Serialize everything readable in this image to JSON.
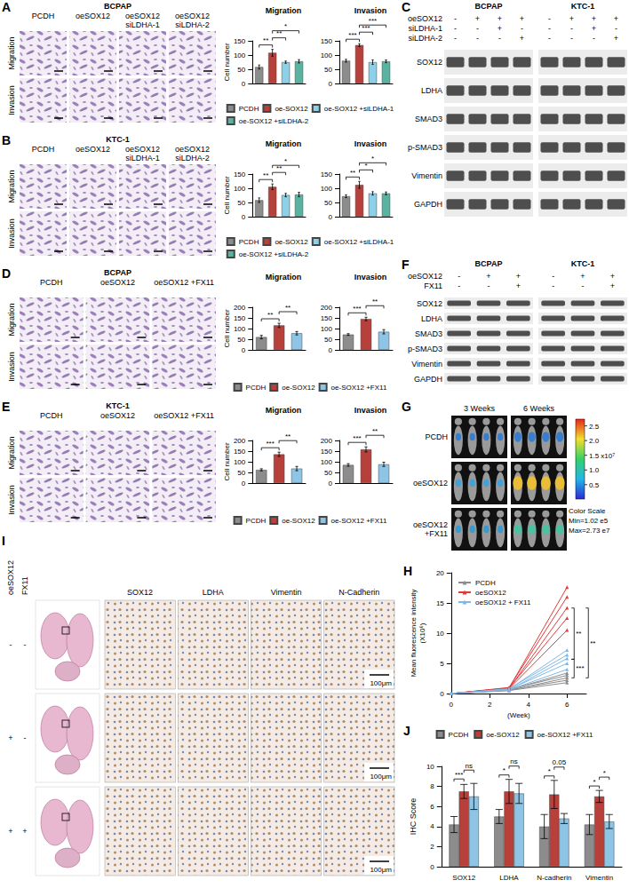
{
  "figure": {
    "panels": [
      {
        "letter": "A",
        "kind": "micrograph",
        "cell_line": "BCPAP",
        "columns": [
          "PCDH",
          "oeSOX12",
          "oeSOX12 siLDHA-1",
          "oeSOX12 siLDHA-2"
        ],
        "rows": [
          "Migration",
          "Invasion"
        ]
      },
      {
        "letter": "B",
        "kind": "micrograph",
        "cell_line": "KTC-1",
        "columns": [
          "PCDH",
          "oeSOX12",
          "oeSOX12 siLDHA-1",
          "oeSOX12 siLDHA-2"
        ],
        "rows": [
          "Migration",
          "Invasion"
        ]
      },
      {
        "letter": "C",
        "kind": "blot",
        "cell_lines": [
          "BCPAP",
          "KTC-1"
        ],
        "conditions": [
          {
            "label": "oeSOX12",
            "signs": [
              "-",
              "+",
              "+",
              "+"
            ]
          },
          {
            "label": "siLDHA-1",
            "signs": [
              "-",
              "-",
              "+",
              "-"
            ]
          },
          {
            "label": "siLDHA-2",
            "signs": [
              "-",
              "-",
              "-",
              "+"
            ]
          }
        ],
        "proteins": [
          "SOX12",
          "LDHA",
          "SMAD3",
          "p-SMAD3",
          "Vimentin",
          "GAPDH"
        ]
      },
      {
        "letter": "D",
        "kind": "micrograph",
        "cell_line": "BCPAP",
        "columns": [
          "PCDH",
          "oeSOX12",
          "oeSOX12 +FX11"
        ],
        "rows": [
          "Migration",
          "Invasion"
        ]
      },
      {
        "letter": "E",
        "kind": "micrograph",
        "cell_line": "KTC-1",
        "columns": [
          "PCDH",
          "oeSOX12",
          "oeSOX12 +FX11"
        ],
        "rows": [
          "Migration",
          "Invasion"
        ]
      },
      {
        "letter": "F",
        "kind": "blot",
        "cell_lines": [
          "BCPAP",
          "KTC-1"
        ],
        "conditions": [
          {
            "label": "oeSOX12",
            "signs": [
              "-",
              "+",
              "+"
            ]
          },
          {
            "label": "FX11",
            "signs": [
              "-",
              "-",
              "+"
            ]
          }
        ],
        "proteins": [
          "SOX12",
          "LDHA",
          "SMAD3",
          "p-SMAD3",
          "Vimentin",
          "GAPDH"
        ]
      },
      {
        "letter": "G",
        "kind": "imaging",
        "timepoints": [
          "3 Weeks",
          "6 Weeks"
        ],
        "groups": [
          "PCDH",
          "oeSOX12",
          "oeSOX12 +FX11"
        ],
        "color_scale": {
          "title": "Color Scale",
          "min_label": "Min=1.02 e5",
          "max_label": "Max=2.73 e7",
          "range": [
            0.0102,
            2.73
          ],
          "ticks": [
            0.5,
            {
              "value": 1,
              "label": "1.0"
            },
            {
              "value": 1.5,
              "label": "1.5 x10⁷"
            },
            {
              "value": 2,
              "label": "2.0"
            },
            2.5
          ]
        }
      },
      {
        "letter": "I",
        "kind": "histology",
        "conditions": [
          {
            "label": "oeSOX12",
            "signs": [
              "-",
              "+",
              "+"
            ]
          },
          {
            "label": "FX11",
            "signs": [
              "-",
              "-",
              "+"
            ]
          }
        ],
        "stains": [
          "SOX12",
          "LDHA",
          "Vimentin",
          "N-Cadherin"
        ],
        "scale_bar": "100μm"
      }
    ]
  },
  "chart_data": [
    {
      "panel": "A",
      "type": "bar",
      "categories": [
        "Migration",
        "Invasion"
      ],
      "y_label": "Cell number",
      "ylim": [
        0,
        150
      ],
      "yticks": [
        0,
        50,
        100,
        150
      ],
      "grid": false,
      "tick_labels": "y",
      "legend": "bottom",
      "series": [
        {
          "name": "PCDH",
          "color": "#8c8c8c",
          "values": [
            58,
            80
          ],
          "errors": [
            7,
            5
          ]
        },
        {
          "name": "oe-SOX12",
          "color": "#b8403a",
          "values": [
            108,
            135
          ],
          "errors": [
            12,
            5
          ]
        },
        {
          "name": "oe-SOX12 +siLDHA-1",
          "color": "#8dd0e8",
          "values": [
            75,
            75
          ],
          "errors": [
            4,
            8
          ]
        },
        {
          "name": "oe-SOX12 +siLDHA-2",
          "color": "#5ab3a0",
          "values": [
            78,
            78
          ],
          "errors": [
            6,
            5
          ]
        }
      ],
      "annotations": [
        {
          "category": "Migration",
          "pair": [
            "PCDH",
            "oe-SOX12"
          ],
          "text": "**"
        },
        {
          "category": "Migration",
          "pair": [
            "oe-SOX12",
            "oe-SOX12 +siLDHA-1"
          ],
          "text": "**"
        },
        {
          "category": "Migration",
          "pair": [
            "oe-SOX12",
            "oe-SOX12 +siLDHA-2"
          ],
          "text": "*"
        },
        {
          "category": "Invasion",
          "pair": [
            "PCDH",
            "oe-SOX12"
          ],
          "text": "***"
        },
        {
          "category": "Invasion",
          "pair": [
            "oe-SOX12",
            "oe-SOX12 +siLDHA-1"
          ],
          "text": "***"
        },
        {
          "category": "Invasion",
          "pair": [
            "oe-SOX12",
            "oe-SOX12 +siLDHA-2"
          ],
          "text": "***"
        }
      ]
    },
    {
      "panel": "B",
      "type": "bar",
      "categories": [
        "Migration",
        "Invasion"
      ],
      "y_label": "Cell number",
      "ylim": [
        0,
        150
      ],
      "yticks": [
        0,
        50,
        100,
        150
      ],
      "grid": false,
      "tick_labels": "y",
      "legend": "bottom",
      "series": [
        {
          "name": "PCDH",
          "color": "#8c8c8c",
          "values": [
            58,
            72
          ],
          "errors": [
            8,
            5
          ]
        },
        {
          "name": "oe-SOX12",
          "color": "#b8403a",
          "values": [
            105,
            112
          ],
          "errors": [
            10,
            12
          ]
        },
        {
          "name": "oe-SOX12 +siLDHA-1",
          "color": "#8dd0e8",
          "values": [
            76,
            82
          ],
          "errors": [
            6,
            6
          ]
        },
        {
          "name": "oe-SOX12 +siLDHA-2",
          "color": "#5ab3a0",
          "values": [
            78,
            82
          ],
          "errors": [
            8,
            5
          ]
        }
      ],
      "annotations": [
        {
          "category": "Migration",
          "pair": [
            "PCDH",
            "oe-SOX12"
          ],
          "text": "**"
        },
        {
          "category": "Migration",
          "pair": [
            "oe-SOX12",
            "oe-SOX12 +siLDHA-1"
          ],
          "text": "**"
        },
        {
          "category": "Migration",
          "pair": [
            "oe-SOX12",
            "oe-SOX12 +siLDHA-2"
          ],
          "text": "*"
        },
        {
          "category": "Invasion",
          "pair": [
            "PCDH",
            "oe-SOX12"
          ],
          "text": "**"
        },
        {
          "category": "Invasion",
          "pair": [
            "oe-SOX12",
            "oe-SOX12 +siLDHA-1"
          ],
          "text": "*"
        },
        {
          "category": "Invasion",
          "pair": [
            "oe-SOX12",
            "oe-SOX12 +siLDHA-2"
          ],
          "text": "*"
        }
      ]
    },
    {
      "panel": "D",
      "type": "bar",
      "categories": [
        "Migration",
        "Invasion"
      ],
      "y_label": "Cell number",
      "ylim": [
        0,
        200
      ],
      "yticks": [
        0,
        50,
        100,
        150,
        200
      ],
      "grid": false,
      "tick_labels": "y",
      "legend": "bottom",
      "series": [
        {
          "name": "PCDH",
          "color": "#8c8c8c",
          "values": [
            60,
            72
          ],
          "errors": [
            8,
            4
          ]
        },
        {
          "name": "oe-SOX12",
          "color": "#b8403a",
          "values": [
            115,
            145
          ],
          "errors": [
            10,
            8
          ]
        },
        {
          "name": "oe-SOX12 +FX11",
          "color": "#8ec5e6",
          "values": [
            78,
            85
          ],
          "errors": [
            8,
            10
          ]
        }
      ],
      "annotations": [
        {
          "category": "Migration",
          "pair": [
            "PCDH",
            "oe-SOX12"
          ],
          "text": "**"
        },
        {
          "category": "Migration",
          "pair": [
            "oe-SOX12",
            "oe-SOX12 +FX11"
          ],
          "text": "**"
        },
        {
          "category": "Invasion",
          "pair": [
            "PCDH",
            "oe-SOX12"
          ],
          "text": "***"
        },
        {
          "category": "Invasion",
          "pair": [
            "oe-SOX12",
            "oe-SOX12 +FX11"
          ],
          "text": "**"
        }
      ]
    },
    {
      "panel": "E",
      "type": "bar",
      "categories": [
        "Migration",
        "Invasion"
      ],
      "y_label": "Cell number",
      "ylim": [
        0,
        200
      ],
      "yticks": [
        0,
        50,
        100,
        150,
        200
      ],
      "grid": false,
      "tick_labels": "y",
      "legend": "bottom",
      "series": [
        {
          "name": "PCDH",
          "color": "#8c8c8c",
          "values": [
            62,
            85
          ],
          "errors": [
            5,
            6
          ]
        },
        {
          "name": "oe-SOX12",
          "color": "#b8403a",
          "values": [
            135,
            158
          ],
          "errors": [
            10,
            12
          ]
        },
        {
          "name": "oe-SOX12 +FX11",
          "color": "#8ec5e6",
          "values": [
            68,
            88
          ],
          "errors": [
            10,
            10
          ]
        }
      ],
      "annotations": [
        {
          "category": "Migration",
          "pair": [
            "PCDH",
            "oe-SOX12"
          ],
          "text": "***"
        },
        {
          "category": "Migration",
          "pair": [
            "oe-SOX12",
            "oe-SOX12 +FX11"
          ],
          "text": "**"
        },
        {
          "category": "Invasion",
          "pair": [
            "PCDH",
            "oe-SOX12"
          ],
          "text": "***"
        },
        {
          "category": "Invasion",
          "pair": [
            "oe-SOX12",
            "oe-SOX12 +FX11"
          ],
          "text": "**"
        }
      ]
    },
    {
      "panel": "H",
      "type": "line",
      "x": [
        0,
        3,
        6
      ],
      "xlim": [
        0,
        7
      ],
      "xticks": [
        0,
        2,
        4,
        6
      ],
      "x_label": "(Week)",
      "ylim": [
        0,
        20
      ],
      "yticks": [
        0,
        5,
        10,
        15,
        20
      ],
      "y_label": "Mean fluorescence intensity (X10⁶)",
      "grid": false,
      "legend": "top-left",
      "marker": "triangle",
      "series": [
        {
          "name": "PCDH",
          "color": "#8c8c8c",
          "values": [
            [
              0,
              0.5,
              1.8
            ],
            [
              0,
              0.6,
              2.2
            ],
            [
              0,
              0.5,
              2.6
            ],
            [
              0,
              0.7,
              3.0
            ],
            [
              0,
              0.6,
              3.4
            ]
          ]
        },
        {
          "name": "oeSOX12",
          "color": "#e03a3a",
          "values": [
            [
              0,
              0.8,
              10.5
            ],
            [
              0,
              0.9,
              12.5
            ],
            [
              0,
              0.8,
              14.2
            ],
            [
              0,
              1.0,
              16.0
            ],
            [
              0,
              0.9,
              17.6
            ]
          ]
        },
        {
          "name": "oeSOX12 + FX11",
          "color": "#7fb8e6",
          "values": [
            [
              0,
              0.6,
              4.0
            ],
            [
              0,
              0.7,
              5.0
            ],
            [
              0,
              0.6,
              5.8
            ],
            [
              0,
              0.8,
              6.4
            ],
            [
              0,
              0.7,
              7.2
            ]
          ]
        }
      ],
      "annotations": [
        {
          "pair": [
            "PCDH",
            "oeSOX12"
          ],
          "text": "**"
        },
        {
          "pair": [
            "oeSOX12",
            "oeSOX12 + FX11"
          ],
          "text": "**"
        },
        {
          "pair": [
            "PCDH",
            "oeSOX12 + FX11"
          ],
          "text": "***"
        }
      ]
    },
    {
      "panel": "J",
      "type": "bar",
      "categories": [
        "SOX12",
        "LDHA",
        "N-cadherin",
        "Vimentin"
      ],
      "y_label": "IHC Score",
      "ylim": [
        0,
        10
      ],
      "yticks": [
        0,
        2,
        4,
        6,
        8,
        10
      ],
      "grid": false,
      "legend": "top",
      "series": [
        {
          "name": "PCDH",
          "color": "#8c8c8c",
          "values": [
            4.2,
            5.0,
            4.0,
            4.2
          ],
          "errors": [
            0.8,
            0.7,
            1.2,
            1.0
          ]
        },
        {
          "name": "oe-SOX12",
          "color": "#b8403a",
          "values": [
            7.5,
            7.5,
            7.2,
            7.0
          ],
          "errors": [
            0.7,
            1.2,
            1.4,
            0.6
          ]
        },
        {
          "name": "oe-SOX12 +FX11",
          "color": "#8ec5e6",
          "values": [
            7.0,
            7.3,
            4.8,
            4.5
          ],
          "errors": [
            1.3,
            1.0,
            0.5,
            0.7
          ]
        }
      ],
      "annotations": [
        {
          "category": "SOX12",
          "pair": [
            "PCDH",
            "oe-SOX12"
          ],
          "text": "***"
        },
        {
          "category": "SOX12",
          "pair": [
            "oe-SOX12",
            "oe-SOX12 +FX11"
          ],
          "text": "ns"
        },
        {
          "category": "LDHA",
          "pair": [
            "PCDH",
            "oe-SOX12"
          ],
          "text": "*"
        },
        {
          "category": "LDHA",
          "pair": [
            "oe-SOX12",
            "oe-SOX12 +FX11"
          ],
          "text": "ns"
        },
        {
          "category": "N-cadherin",
          "pair": [
            "PCDH",
            "oe-SOX12"
          ],
          "text": "*"
        },
        {
          "category": "N-cadherin",
          "pair": [
            "oe-SOX12",
            "oe-SOX12 +FX11"
          ],
          "text": "0.05"
        },
        {
          "category": "Vimentin",
          "pair": [
            "PCDH",
            "oe-SOX12"
          ],
          "text": "*"
        },
        {
          "category": "Vimentin",
          "pair": [
            "oe-SOX12",
            "oe-SOX12 +FX11"
          ],
          "text": "*"
        }
      ]
    }
  ]
}
